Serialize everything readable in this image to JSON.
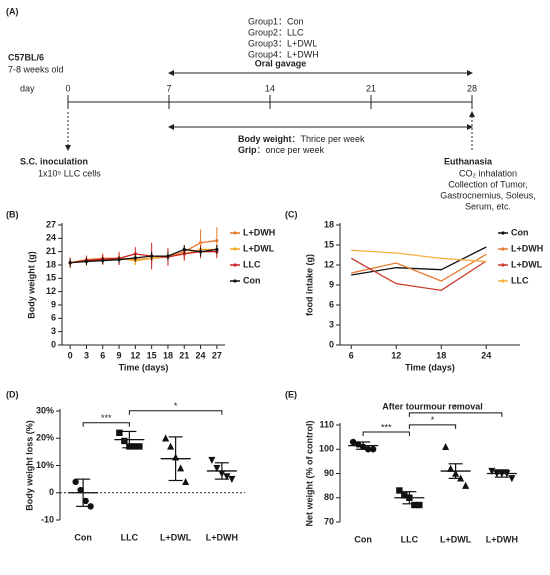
{
  "timeline": {
    "panel": "(A)",
    "strain": "C57BL/6",
    "age": "7-8 weeks old",
    "day_label": "day",
    "days": [
      0,
      7,
      14,
      21,
      28
    ],
    "groups": [
      "Group1：Con",
      "Group2：LLC",
      "Group3：L+DWL",
      "Group4：L+DWH"
    ],
    "gavage": "Oral gavage",
    "measures": [
      {
        "label": "Body weight",
        "text": "：Thrice per week"
      },
      {
        "label": "Grip",
        "text": "：once per week"
      }
    ],
    "inoculation": {
      "title": "S.C. inoculation",
      "lines": [
        "1x10⁵ LLC cells"
      ]
    },
    "euthanasia": {
      "title": "Euthanasia",
      "lines": [
        "CO₂ inhalation",
        "Collection of Tumor,",
        "Gastrocnemius, Soleus,",
        "Serum, etc."
      ]
    }
  },
  "chart_data": [
    {
      "type": "line",
      "panel": "(B)",
      "xlabel": "Time (days)",
      "ylabel": "Body weight (g)",
      "x": [
        0,
        3,
        6,
        9,
        12,
        15,
        18,
        21,
        24,
        27
      ],
      "xlim": [
        -1.5,
        28.5
      ],
      "xticks": [
        0,
        3,
        6,
        9,
        12,
        15,
        18,
        21,
        24,
        27
      ],
      "ylim": [
        0,
        27
      ],
      "yticks": [
        0,
        3,
        6,
        9,
        12,
        15,
        18,
        21,
        24,
        27
      ],
      "legend": "right",
      "markers": true,
      "series": [
        {
          "name": "L+DWH",
          "color": "#e8772e",
          "values": [
            18.5,
            19.2,
            19.5,
            19.5,
            19.2,
            19.5,
            19.8,
            21,
            23,
            23.5
          ],
          "errors": [
            1,
            1,
            1,
            1,
            1.2,
            1,
            1.5,
            1.5,
            3,
            3
          ]
        },
        {
          "name": "L+DWL",
          "color": "#f5a623",
          "values": [
            18.5,
            18.8,
            19,
            19.5,
            19,
            19.5,
            20,
            20.5,
            21.5,
            21.5
          ],
          "errors": [
            1,
            1,
            1,
            1,
            1,
            1.2,
            1.2,
            1.5,
            1.5,
            1.5
          ]
        },
        {
          "name": "LLC",
          "color": "#cc2222",
          "values": [
            18.5,
            19,
            19.3,
            19.5,
            20.5,
            20,
            19.8,
            20.5,
            21,
            21
          ],
          "errors": [
            1.2,
            1,
            1.2,
            1.5,
            1.5,
            3,
            2,
            1.5,
            1.5,
            1.5
          ]
        },
        {
          "name": "Con",
          "color": "#111111",
          "values": [
            18.5,
            18.8,
            19,
            19.2,
            19.6,
            20,
            20,
            21.5,
            21,
            21.5
          ],
          "errors": [
            0.8,
            0.8,
            0.8,
            0.8,
            0.8,
            1,
            1,
            1,
            1,
            1
          ]
        }
      ]
    },
    {
      "type": "line",
      "panel": "(C)",
      "xlabel": "Time (days)",
      "ylabel": "food intake (g)",
      "x": [
        6,
        12,
        18,
        24
      ],
      "xlim": [
        4.5,
        28.5
      ],
      "xticks": [
        6,
        12,
        18,
        24
      ],
      "ylim": [
        0,
        18
      ],
      "yticks": [
        0,
        3,
        6,
        9,
        12,
        15,
        18
      ],
      "legend": "upper right",
      "markers": false,
      "series": [
        {
          "name": "Con",
          "color": "#111111",
          "values": [
            10.5,
            11.6,
            11.3,
            14.7
          ]
        },
        {
          "name": "L+DWH",
          "color": "#e8772e",
          "values": [
            10.8,
            12.3,
            9.6,
            13.6
          ]
        },
        {
          "name": "L+DWL",
          "color": "#cc3a2a",
          "values": [
            13,
            9.2,
            8.2,
            12.6
          ]
        },
        {
          "name": "LLC",
          "color": "#f5b041",
          "values": [
            14.2,
            13.8,
            13,
            12.5
          ]
        }
      ]
    },
    {
      "type": "dot",
      "panel": "(D)",
      "ylabel": "Body weight loss (%)",
      "categories": [
        "Con",
        "LLC",
        "L+DWL",
        "L+DWH"
      ],
      "markers": [
        "circle",
        "square",
        "triangle",
        "triangle-down"
      ],
      "points": [
        [
          4,
          1,
          -3,
          -5
        ],
        [
          22,
          19,
          17,
          17,
          17
        ],
        [
          20,
          17,
          13,
          9,
          4
        ],
        [
          12,
          9,
          7,
          6,
          5
        ]
      ],
      "means": [
        0,
        19.5,
        12.5,
        8
      ],
      "sds": [
        5,
        3,
        8,
        3
      ],
      "ylim": [
        -10,
        30
      ],
      "yticks": [
        -10,
        0,
        {
          "value": 10,
          "label": "10%"
        },
        {
          "value": 20,
          "label": "20%"
        },
        {
          "value": 30,
          "label": "30%"
        }
      ],
      "zero_line": true,
      "annotations": [
        {
          "text": "***",
          "between": [
            "Con",
            "LLC"
          ]
        },
        {
          "text": "*",
          "between": [
            "LLC",
            "L+DWH"
          ]
        }
      ]
    },
    {
      "type": "dot",
      "panel": "(E)",
      "title": "After tourmour removal",
      "ylabel": "Net weight (% of control)",
      "categories": [
        "Con",
        "LLC",
        "L+DWL",
        "L+DWH"
      ],
      "markers": [
        "circle",
        "square",
        "triangle",
        "triangle-down"
      ],
      "points": [
        [
          103,
          102,
          101,
          100,
          100
        ],
        [
          83,
          81,
          80,
          77,
          77
        ],
        [
          101,
          92,
          90,
          88,
          85
        ],
        [
          91,
          90,
          90,
          90,
          88
        ]
      ],
      "means": [
        101.5,
        80,
        91,
        90
      ],
      "sds": [
        1.5,
        2.5,
        3,
        1.5
      ],
      "ylim": [
        70,
        110
      ],
      "yticks": [
        70,
        80,
        90,
        100,
        110
      ],
      "zero_line": false,
      "annotations": [
        {
          "text": "***",
          "between": [
            "Con",
            "LLC"
          ]
        },
        {
          "text": "*",
          "between": [
            "LLC",
            "L+DWL"
          ]
        },
        {
          "text": "*",
          "between": [
            "LLC",
            "L+DWH"
          ]
        }
      ]
    }
  ]
}
